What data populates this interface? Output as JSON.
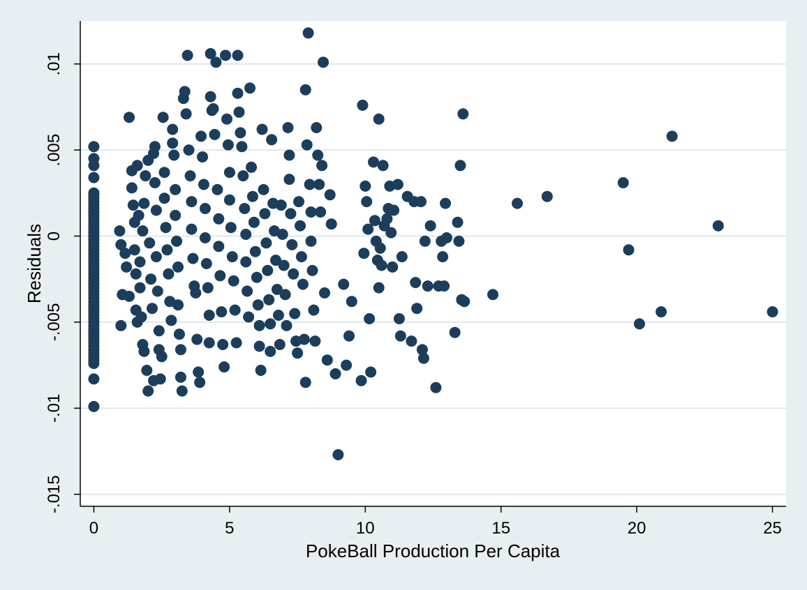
{
  "chart_data": {
    "type": "scatter",
    "title": "",
    "xlabel": "PokeBall Production Per Capita",
    "ylabel": "Residuals",
    "xlim": [
      -0.5,
      25.5
    ],
    "ylim": [
      -0.0157,
      0.0125
    ],
    "xticks": [
      0,
      5,
      10,
      15,
      20,
      25
    ],
    "xtick_labels": [
      "0",
      "5",
      "10",
      "15",
      "20",
      "25"
    ],
    "yticks": [
      -0.015,
      -0.01,
      -0.005,
      0,
      0.005,
      0.01
    ],
    "ytick_labels": [
      "-.015",
      "-.01",
      "-.005",
      "0",
      ".005",
      ".01"
    ],
    "grid": "horizontal",
    "legend": "none",
    "colors": {
      "outer_background": "#e8eff2",
      "plot_background": "#ffffff",
      "marker": "#1a3e5c",
      "gridline": "#dde7ea"
    },
    "series": [
      {
        "points": [
          [
            0,
            0.0052
          ],
          [
            0,
            0.0045
          ],
          [
            0,
            0.0041
          ],
          [
            0,
            0.0034
          ],
          [
            0,
            0.0025
          ],
          [
            0,
            0.0024
          ],
          [
            0,
            0.0022
          ],
          [
            0,
            0.002
          ],
          [
            0,
            0.0018
          ],
          [
            0,
            0.0016
          ],
          [
            0,
            0.0014
          ],
          [
            0,
            0.0012
          ],
          [
            0,
            0.001
          ],
          [
            0,
            0.0008
          ],
          [
            0,
            0.0006
          ],
          [
            0,
            0.0004
          ],
          [
            0,
            0.0002
          ],
          [
            0,
            0.0
          ],
          [
            0,
            -0.0002
          ],
          [
            0,
            -0.0004
          ],
          [
            0,
            -0.0006
          ],
          [
            0,
            -0.0008
          ],
          [
            0,
            -0.001
          ],
          [
            0,
            -0.0012
          ],
          [
            0,
            -0.0014
          ],
          [
            0,
            -0.0016
          ],
          [
            0,
            -0.0018
          ],
          [
            0,
            -0.002
          ],
          [
            0,
            -0.0022
          ],
          [
            0,
            -0.0024
          ],
          [
            0,
            -0.0026
          ],
          [
            0,
            -0.0028
          ],
          [
            0,
            -0.003
          ],
          [
            0,
            -0.0032
          ],
          [
            0,
            -0.0034
          ],
          [
            0,
            -0.0036
          ],
          [
            0,
            -0.0038
          ],
          [
            0,
            -0.004
          ],
          [
            0,
            -0.0042
          ],
          [
            0,
            -0.0044
          ],
          [
            0,
            -0.0046
          ],
          [
            0,
            -0.0048
          ],
          [
            0,
            -0.005
          ],
          [
            0,
            -0.0052
          ],
          [
            0,
            -0.0054
          ],
          [
            0,
            -0.0056
          ],
          [
            0,
            -0.0058
          ],
          [
            0,
            -0.006
          ],
          [
            0,
            -0.0062
          ],
          [
            0,
            -0.0064
          ],
          [
            0,
            -0.0066
          ],
          [
            0,
            -0.0068
          ],
          [
            0,
            -0.007
          ],
          [
            0,
            -0.0072
          ],
          [
            0,
            -0.0074
          ],
          [
            0,
            -0.0083
          ],
          [
            0,
            -0.0099
          ],
          [
            0.95,
            0.0003
          ],
          [
            1.0,
            -0.0005
          ],
          [
            1.05,
            -0.0034
          ],
          [
            1.0,
            -0.0052
          ],
          [
            1.15,
            -0.001
          ],
          [
            1.2,
            -0.0018
          ],
          [
            1.3,
            0.0069
          ],
          [
            1.3,
            -0.0035
          ],
          [
            1.4,
            0.0038
          ],
          [
            1.4,
            0.0028
          ],
          [
            1.45,
            0.0018
          ],
          [
            1.5,
            0.0008
          ],
          [
            1.5,
            -0.0008
          ],
          [
            1.55,
            -0.0022
          ],
          [
            1.55,
            -0.0043
          ],
          [
            1.6,
            -0.005
          ],
          [
            1.6,
            0.0041
          ],
          [
            1.65,
            0.0012
          ],
          [
            1.7,
            -0.0015
          ],
          [
            1.7,
            -0.003
          ],
          [
            1.75,
            -0.0047
          ],
          [
            1.8,
            -0.0063
          ],
          [
            1.85,
            -0.0067
          ],
          [
            1.8,
            0.0003
          ],
          [
            1.85,
            0.0019
          ],
          [
            1.9,
            0.0035
          ],
          [
            1.95,
            -0.0078
          ],
          [
            2.0,
            -0.009
          ],
          [
            2.0,
            0.0044
          ],
          [
            2.05,
            -0.0004
          ],
          [
            2.1,
            -0.0025
          ],
          [
            2.15,
            -0.0042
          ],
          [
            2.2,
            -0.0084
          ],
          [
            2.2,
            0.0048
          ],
          [
            2.25,
            0.0052
          ],
          [
            2.25,
            0.0031
          ],
          [
            2.3,
            0.0015
          ],
          [
            2.3,
            -0.0012
          ],
          [
            2.35,
            -0.0032
          ],
          [
            2.4,
            -0.0055
          ],
          [
            2.4,
            -0.0066
          ],
          [
            2.45,
            -0.0083
          ],
          [
            2.5,
            -0.007
          ],
          [
            2.55,
            0.0069
          ],
          [
            2.6,
            0.0037
          ],
          [
            2.6,
            0.0022
          ],
          [
            2.65,
            0.0005
          ],
          [
            2.7,
            -0.0008
          ],
          [
            2.75,
            -0.0022
          ],
          [
            2.8,
            -0.0038
          ],
          [
            2.85,
            -0.0049
          ],
          [
            2.9,
            0.0062
          ],
          [
            2.9,
            0.0054
          ],
          [
            2.95,
            0.0047
          ],
          [
            3.0,
            0.0027
          ],
          [
            3.0,
            0.0012
          ],
          [
            3.05,
            -0.0003
          ],
          [
            3.1,
            -0.0018
          ],
          [
            3.1,
            -0.004
          ],
          [
            3.15,
            -0.0057
          ],
          [
            3.2,
            -0.0066
          ],
          [
            3.2,
            -0.0082
          ],
          [
            3.25,
            -0.009
          ],
          [
            3.3,
            0.008
          ],
          [
            3.35,
            0.0084
          ],
          [
            3.4,
            0.0071
          ],
          [
            3.45,
            0.0105
          ],
          [
            3.5,
            0.005
          ],
          [
            3.55,
            0.0035
          ],
          [
            3.6,
            0.002
          ],
          [
            3.6,
            0.0004
          ],
          [
            3.65,
            -0.0013
          ],
          [
            3.7,
            -0.0029
          ],
          [
            3.75,
            -0.0033
          ],
          [
            3.8,
            -0.006
          ],
          [
            3.85,
            -0.0079
          ],
          [
            3.9,
            -0.0085
          ],
          [
            3.95,
            0.0058
          ],
          [
            4.0,
            0.0046
          ],
          [
            4.05,
            0.003
          ],
          [
            4.1,
            0.0016
          ],
          [
            4.1,
            -0.0001
          ],
          [
            4.15,
            -0.0016
          ],
          [
            4.2,
            -0.003
          ],
          [
            4.25,
            -0.0046
          ],
          [
            4.25,
            -0.0062
          ],
          [
            4.3,
            0.0106
          ],
          [
            4.3,
            0.0081
          ],
          [
            4.35,
            0.0073
          ],
          [
            4.4,
            0.0074
          ],
          [
            4.45,
            0.0059
          ],
          [
            4.5,
            0.0101
          ],
          [
            4.55,
            0.0027
          ],
          [
            4.6,
            0.001
          ],
          [
            4.6,
            -0.0006
          ],
          [
            4.65,
            -0.0023
          ],
          [
            4.7,
            -0.0044
          ],
          [
            4.75,
            -0.0063
          ],
          [
            4.8,
            -0.0076
          ],
          [
            4.85,
            0.0105
          ],
          [
            4.9,
            0.0068
          ],
          [
            4.95,
            0.0053
          ],
          [
            5.0,
            0.0037
          ],
          [
            5.0,
            0.0021
          ],
          [
            5.05,
            0.0005
          ],
          [
            5.1,
            -0.0012
          ],
          [
            5.15,
            -0.0026
          ],
          [
            5.2,
            -0.0043
          ],
          [
            5.25,
            -0.0062
          ],
          [
            5.3,
            0.0105
          ],
          [
            5.3,
            0.0083
          ],
          [
            5.35,
            0.0072
          ],
          [
            5.4,
            0.006
          ],
          [
            5.45,
            0.0052
          ],
          [
            5.5,
            0.0035
          ],
          [
            5.55,
            0.0016
          ],
          [
            5.6,
            0.0001
          ],
          [
            5.6,
            -0.0015
          ],
          [
            5.65,
            -0.0032
          ],
          [
            5.7,
            -0.0047
          ],
          [
            5.75,
            0.0086
          ],
          [
            5.8,
            0.004
          ],
          [
            5.85,
            0.0023
          ],
          [
            5.9,
            0.0008
          ],
          [
            5.95,
            -0.0009
          ],
          [
            6.0,
            -0.0024
          ],
          [
            6.05,
            -0.004
          ],
          [
            6.1,
            -0.0052
          ],
          [
            6.1,
            -0.0064
          ],
          [
            6.15,
            -0.0078
          ],
          [
            6.2,
            0.0062
          ],
          [
            6.25,
            0.0027
          ],
          [
            6.3,
            0.0013
          ],
          [
            6.35,
            -0.0004
          ],
          [
            6.4,
            -0.002
          ],
          [
            6.45,
            -0.0037
          ],
          [
            6.5,
            -0.0051
          ],
          [
            6.5,
            -0.0067
          ],
          [
            6.55,
            0.0056
          ],
          [
            6.6,
            0.0019
          ],
          [
            6.65,
            0.0003
          ],
          [
            6.7,
            -0.0014
          ],
          [
            6.75,
            -0.0031
          ],
          [
            6.8,
            -0.0046
          ],
          [
            6.85,
            -0.0063
          ],
          [
            6.9,
            0.0018
          ],
          [
            6.95,
            0.0001
          ],
          [
            7.0,
            -0.0017
          ],
          [
            7.05,
            -0.0034
          ],
          [
            7.1,
            -0.0052
          ],
          [
            7.15,
            0.0063
          ],
          [
            7.2,
            0.0047
          ],
          [
            7.2,
            0.0033
          ],
          [
            7.25,
            0.0013
          ],
          [
            7.3,
            -0.0005
          ],
          [
            7.35,
            -0.0022
          ],
          [
            7.4,
            -0.0045
          ],
          [
            7.45,
            -0.0061
          ],
          [
            7.5,
            -0.0068
          ],
          [
            7.55,
            0.002
          ],
          [
            7.6,
            0.0006
          ],
          [
            7.65,
            -0.0012
          ],
          [
            7.7,
            -0.0028
          ],
          [
            7.75,
            -0.006
          ],
          [
            7.8,
            -0.0085
          ],
          [
            7.8,
            0.0085
          ],
          [
            7.85,
            0.0053
          ],
          [
            7.9,
            0.0118
          ],
          [
            7.95,
            0.003
          ],
          [
            8.0,
            0.0014
          ],
          [
            8.0,
            -0.0003
          ],
          [
            8.05,
            -0.002
          ],
          [
            8.1,
            -0.0043
          ],
          [
            8.15,
            -0.0061
          ],
          [
            8.2,
            0.0063
          ],
          [
            8.25,
            0.0047
          ],
          [
            8.3,
            0.003
          ],
          [
            8.35,
            0.0014
          ],
          [
            8.4,
            0.0041
          ],
          [
            8.45,
            0.0101
          ],
          [
            8.5,
            -0.0033
          ],
          [
            8.6,
            -0.0072
          ],
          [
            8.7,
            0.0024
          ],
          [
            8.75,
            0.0007
          ],
          [
            8.9,
            -0.008
          ],
          [
            9.0,
            -0.0127
          ],
          [
            9.2,
            -0.0028
          ],
          [
            9.3,
            -0.0075
          ],
          [
            9.4,
            -0.0058
          ],
          [
            9.5,
            -0.0038
          ],
          [
            9.85,
            -0.0084
          ],
          [
            9.9,
            0.0076
          ],
          [
            9.95,
            -0.001
          ],
          [
            10.0,
            0.0029
          ],
          [
            10.05,
            0.002
          ],
          [
            10.1,
            0.0004
          ],
          [
            10.15,
            -0.0048
          ],
          [
            10.2,
            -0.0079
          ],
          [
            10.3,
            0.0043
          ],
          [
            10.35,
            0.0009
          ],
          [
            10.4,
            -0.0003
          ],
          [
            10.45,
            -0.0014
          ],
          [
            10.5,
            0.0068
          ],
          [
            10.5,
            -0.003
          ],
          [
            10.55,
            -0.0007
          ],
          [
            10.6,
            -0.0017
          ],
          [
            10.65,
            0.0041
          ],
          [
            10.7,
            0.0006
          ],
          [
            10.8,
            0.001
          ],
          [
            10.85,
            0.0016
          ],
          [
            10.9,
            0.0029
          ],
          [
            10.95,
            0.0002
          ],
          [
            11.0,
            -0.0018
          ],
          [
            11.05,
            0.0015
          ],
          [
            11.2,
            0.003
          ],
          [
            11.25,
            -0.0048
          ],
          [
            11.3,
            -0.0058
          ],
          [
            11.35,
            -0.0012
          ],
          [
            11.55,
            0.0023
          ],
          [
            11.7,
            -0.0061
          ],
          [
            11.8,
            0.002
          ],
          [
            11.85,
            -0.0027
          ],
          [
            11.9,
            -0.0042
          ],
          [
            12.05,
            0.002
          ],
          [
            12.1,
            -0.0066
          ],
          [
            12.15,
            -0.0071
          ],
          [
            12.2,
            -0.0003
          ],
          [
            12.3,
            -0.0029
          ],
          [
            12.4,
            0.0006
          ],
          [
            12.6,
            -0.0088
          ],
          [
            12.7,
            -0.0029
          ],
          [
            12.8,
            -0.0003
          ],
          [
            12.85,
            -0.0012
          ],
          [
            12.9,
            -0.0029
          ],
          [
            12.95,
            0.0019
          ],
          [
            13.0,
            -0.0001
          ],
          [
            13.3,
            -0.0056
          ],
          [
            13.4,
            0.0008
          ],
          [
            13.45,
            -0.0003
          ],
          [
            13.5,
            0.0041
          ],
          [
            13.55,
            -0.0037
          ],
          [
            13.6,
            0.0071
          ],
          [
            13.65,
            -0.0038
          ],
          [
            14.7,
            -0.0034
          ],
          [
            15.6,
            0.0019
          ],
          [
            16.7,
            0.0023
          ],
          [
            19.5,
            0.0031
          ],
          [
            19.7,
            -0.0008
          ],
          [
            20.1,
            -0.0051
          ],
          [
            20.9,
            -0.0044
          ],
          [
            21.3,
            0.0058
          ],
          [
            23.0,
            0.0006
          ],
          [
            25.0,
            -0.0044
          ]
        ]
      }
    ]
  }
}
